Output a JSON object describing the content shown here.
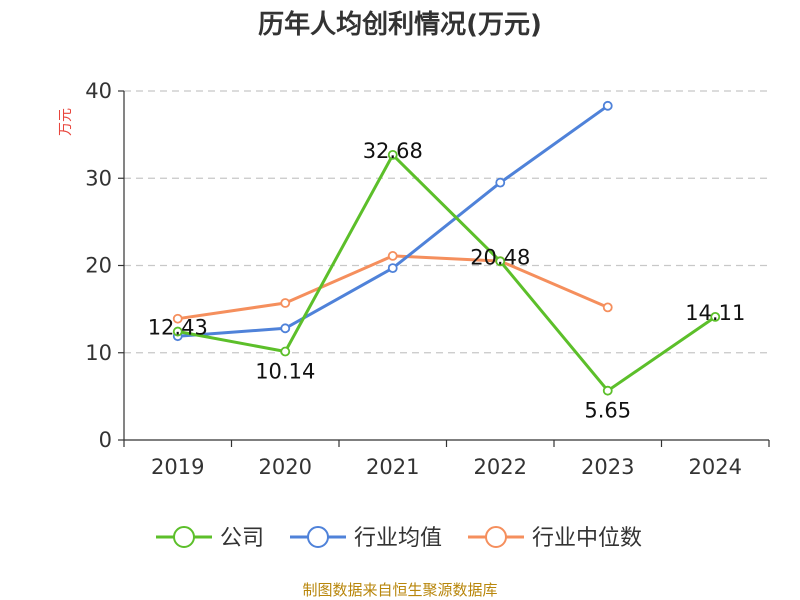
{
  "chart_data": {
    "type": "line",
    "title": "历年人均创利情况(万元)",
    "ylabel": "万元",
    "xlabel": "",
    "categories": [
      "2019",
      "2020",
      "2021",
      "2022",
      "2023",
      "2024"
    ],
    "ylim": [
      0,
      40
    ],
    "yticks": [
      0,
      10,
      20,
      30,
      40
    ],
    "grid": true,
    "legend_position": "bottom",
    "series": [
      {
        "name": "公司",
        "color": "#5cbf2a",
        "values": [
          12.43,
          10.14,
          32.68,
          20.48,
          5.65,
          14.11
        ],
        "labels": [
          "12.43",
          "10.14",
          "32.68",
          "20.48",
          "5.65",
          "14.11"
        ]
      },
      {
        "name": "行业均值",
        "color": "#4f82d9",
        "values": [
          11.9,
          12.8,
          19.7,
          29.5,
          38.3,
          null
        ]
      },
      {
        "name": "行业中位数",
        "color": "#f58f5d",
        "values": [
          13.9,
          15.7,
          21.1,
          20.5,
          15.2,
          null
        ]
      }
    ]
  },
  "footer": "制图数据来自恒生聚源数据库"
}
